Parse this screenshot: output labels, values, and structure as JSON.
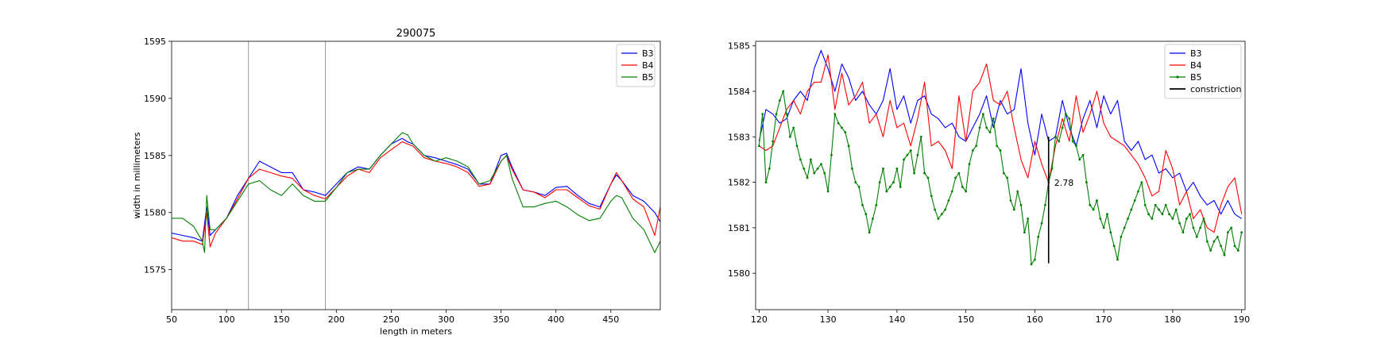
{
  "colors": {
    "B3": "#0000ff",
    "B4": "#ff0000",
    "B5": "#008000",
    "constriction": "#000000",
    "markers": "#808080"
  },
  "chart_data": [
    {
      "type": "line",
      "title": "290075",
      "xlabel": "length in meters",
      "ylabel": "width in millimeters",
      "xlim": [
        50,
        495
      ],
      "ylim": [
        1571.5,
        1595
      ],
      "xticks": [
        50,
        100,
        150,
        200,
        250,
        300,
        350,
        400,
        450
      ],
      "yticks": [
        1575,
        1580,
        1585,
        1590,
        1595
      ],
      "vlines": [
        120,
        190
      ],
      "legend": "top-right",
      "legend_entries": [
        "B3",
        "B4",
        "B5"
      ],
      "series": [
        {
          "name": "B3",
          "color": "#0000ff",
          "x": [
            50,
            60,
            70,
            78,
            82,
            85,
            90,
            100,
            110,
            120,
            130,
            140,
            150,
            160,
            170,
            180,
            190,
            200,
            210,
            220,
            230,
            240,
            250,
            260,
            265,
            270,
            280,
            290,
            300,
            310,
            320,
            330,
            340,
            350,
            355,
            360,
            370,
            380,
            390,
            400,
            410,
            420,
            430,
            440,
            450,
            455,
            460,
            470,
            480,
            490,
            495
          ],
          "y": [
            1578.2,
            1578.0,
            1577.8,
            1577.5,
            1580.5,
            1578.0,
            1578.5,
            1579.5,
            1581.5,
            1583.0,
            1584.5,
            1584.0,
            1583.5,
            1583.5,
            1582.0,
            1581.8,
            1581.5,
            1582.5,
            1583.5,
            1584.0,
            1583.8,
            1585.0,
            1586.0,
            1586.5,
            1586.2,
            1586.0,
            1585.0,
            1584.8,
            1584.5,
            1584.2,
            1583.8,
            1582.5,
            1582.5,
            1585.0,
            1585.2,
            1584.0,
            1582.0,
            1581.8,
            1581.5,
            1582.2,
            1582.3,
            1581.5,
            1580.8,
            1580.5,
            1582.5,
            1583.3,
            1582.8,
            1581.5,
            1581.0,
            1580.0,
            1579.2
          ]
        },
        {
          "name": "B4",
          "color": "#ff0000",
          "x": [
            50,
            60,
            70,
            78,
            82,
            85,
            90,
            100,
            110,
            120,
            130,
            140,
            150,
            160,
            170,
            180,
            190,
            200,
            210,
            220,
            230,
            240,
            250,
            260,
            265,
            270,
            280,
            290,
            300,
            310,
            320,
            330,
            340,
            350,
            355,
            360,
            370,
            380,
            390,
            400,
            410,
            420,
            430,
            440,
            450,
            455,
            460,
            470,
            480,
            490,
            495
          ],
          "y": [
            1577.8,
            1577.5,
            1577.5,
            1577.2,
            1580.0,
            1577.0,
            1578.2,
            1579.5,
            1581.2,
            1583.0,
            1583.8,
            1583.5,
            1583.2,
            1583.0,
            1582.0,
            1581.5,
            1581.2,
            1582.2,
            1583.2,
            1583.8,
            1583.5,
            1584.8,
            1585.5,
            1586.2,
            1586.0,
            1585.8,
            1584.8,
            1584.5,
            1584.3,
            1584.0,
            1583.5,
            1582.3,
            1582.5,
            1584.5,
            1585.0,
            1583.8,
            1582.0,
            1581.8,
            1581.3,
            1582.0,
            1582.0,
            1581.3,
            1580.6,
            1580.3,
            1582.5,
            1583.5,
            1582.8,
            1581.2,
            1580.5,
            1578.0,
            1580.5
          ]
        },
        {
          "name": "B5",
          "color": "#008000",
          "x": [
            50,
            60,
            70,
            78,
            80,
            82,
            85,
            90,
            100,
            110,
            120,
            130,
            140,
            150,
            160,
            170,
            180,
            190,
            200,
            210,
            220,
            230,
            240,
            250,
            260,
            265,
            270,
            280,
            290,
            300,
            310,
            320,
            330,
            340,
            350,
            355,
            360,
            370,
            380,
            390,
            400,
            410,
            420,
            430,
            440,
            450,
            455,
            460,
            470,
            480,
            490,
            495
          ],
          "y": [
            1579.5,
            1579.5,
            1578.8,
            1577.5,
            1576.5,
            1581.5,
            1578.5,
            1578.5,
            1579.5,
            1581.0,
            1582.5,
            1582.8,
            1582.0,
            1581.5,
            1582.5,
            1581.5,
            1581.0,
            1581.0,
            1582.2,
            1583.5,
            1583.8,
            1583.8,
            1585.0,
            1586.0,
            1587.0,
            1586.8,
            1586.0,
            1585.0,
            1584.5,
            1584.8,
            1584.5,
            1584.0,
            1582.5,
            1582.8,
            1584.5,
            1585.0,
            1583.0,
            1580.5,
            1580.5,
            1580.8,
            1581.0,
            1580.5,
            1579.8,
            1579.3,
            1579.5,
            1581.0,
            1581.5,
            1581.3,
            1579.5,
            1578.5,
            1576.5,
            1577.5
          ]
        }
      ]
    },
    {
      "type": "line",
      "xlim": [
        119.5,
        190.5
      ],
      "ylim": [
        1579.2,
        1585.1
      ],
      "xticks": [
        120,
        130,
        140,
        150,
        160,
        170,
        180,
        190
      ],
      "yticks": [
        1580,
        1581,
        1582,
        1583,
        1584,
        1585
      ],
      "legend": "top-right",
      "legend_entries": [
        "B3",
        "B4",
        "B5",
        "constriction"
      ],
      "annotation": {
        "x": 162,
        "y_top": 1583.0,
        "y_bottom": 1580.22,
        "label": "2.78"
      },
      "series": [
        {
          "name": "B3",
          "color": "#0000ff",
          "x": [
            120,
            121,
            122,
            123,
            124,
            125,
            126,
            127,
            128,
            129,
            130,
            131,
            132,
            133,
            134,
            135,
            136,
            137,
            138,
            139,
            140,
            141,
            142,
            143,
            144,
            145,
            146,
            147,
            148,
            149,
            150,
            151,
            152,
            153,
            154,
            155,
            156,
            157,
            158,
            159,
            160,
            161,
            162,
            163,
            164,
            165,
            166,
            167,
            168,
            169,
            170,
            171,
            172,
            173,
            174,
            175,
            176,
            177,
            178,
            179,
            180,
            181,
            182,
            183,
            184,
            185,
            186,
            187,
            188,
            189,
            190
          ],
          "y": [
            1582.9,
            1583.6,
            1583.5,
            1583.3,
            1583.4,
            1583.8,
            1584.0,
            1583.8,
            1584.5,
            1584.9,
            1584.5,
            1584.0,
            1584.6,
            1584.3,
            1583.8,
            1584.0,
            1583.7,
            1583.5,
            1583.8,
            1584.5,
            1583.6,
            1583.9,
            1583.3,
            1583.8,
            1583.9,
            1583.5,
            1583.4,
            1583.2,
            1583.3,
            1583.0,
            1582.9,
            1583.2,
            1583.5,
            1583.9,
            1583.2,
            1583.8,
            1583.5,
            1583.6,
            1584.5,
            1583.3,
            1582.6,
            1583.5,
            1582.9,
            1583.0,
            1583.8,
            1583.2,
            1582.8,
            1583.4,
            1583.8,
            1583.2,
            1583.9,
            1583.5,
            1583.8,
            1582.9,
            1582.7,
            1582.9,
            1582.5,
            1582.6,
            1582.2,
            1582.3,
            1582.1,
            1582.2,
            1581.8,
            1582.0,
            1581.7,
            1581.5,
            1581.6,
            1581.3,
            1581.6,
            1581.3,
            1581.2
          ]
        },
        {
          "name": "B4",
          "color": "#ff0000",
          "x": [
            120,
            121,
            122,
            123,
            124,
            125,
            126,
            127,
            128,
            129,
            130,
            131,
            132,
            133,
            134,
            135,
            136,
            137,
            138,
            139,
            140,
            141,
            142,
            143,
            144,
            145,
            146,
            147,
            148,
            149,
            150,
            151,
            152,
            153,
            154,
            155,
            156,
            157,
            158,
            159,
            160,
            161,
            162,
            163,
            164,
            165,
            166,
            167,
            168,
            169,
            170,
            171,
            172,
            173,
            174,
            175,
            176,
            177,
            178,
            179,
            180,
            181,
            182,
            183,
            184,
            185,
            186,
            187,
            188,
            189,
            190
          ],
          "y": [
            1582.8,
            1582.7,
            1582.8,
            1583.2,
            1583.6,
            1583.8,
            1583.5,
            1584.0,
            1584.2,
            1584.2,
            1584.8,
            1583.6,
            1584.4,
            1583.7,
            1583.9,
            1584.2,
            1583.3,
            1583.5,
            1583.0,
            1583.8,
            1583.2,
            1583.3,
            1582.8,
            1583.4,
            1584.2,
            1582.8,
            1582.9,
            1582.7,
            1582.3,
            1583.9,
            1582.9,
            1584.0,
            1584.2,
            1584.6,
            1583.8,
            1583.7,
            1584.0,
            1583.2,
            1582.5,
            1582.1,
            1582.9,
            1582.4,
            1582.0,
            1582.8,
            1583.4,
            1582.9,
            1583.9,
            1583.1,
            1583.5,
            1584.0,
            1583.3,
            1583.0,
            1582.9,
            1582.8,
            1582.6,
            1582.4,
            1582.1,
            1581.7,
            1581.8,
            1582.7,
            1582.3,
            1581.5,
            1581.8,
            1581.2,
            1581.4,
            1581.0,
            1580.9,
            1581.5,
            1581.9,
            1582.1,
            1581.3
          ]
        },
        {
          "name": "B5",
          "color": "#008000",
          "x": [
            120,
            120.5,
            121,
            121.5,
            122,
            122.5,
            123,
            123.5,
            124,
            124.5,
            125,
            125.5,
            126,
            126.5,
            127,
            127.5,
            128,
            128.5,
            129,
            129.5,
            130,
            130.5,
            131,
            131.5,
            132,
            132.5,
            133,
            133.5,
            134,
            134.5,
            135,
            135.5,
            136,
            136.5,
            137,
            137.5,
            138,
            138.5,
            139,
            139.5,
            140,
            140.5,
            141,
            141.5,
            142,
            142.5,
            143,
            143.5,
            144,
            144.5,
            145,
            145.5,
            146,
            146.5,
            147,
            147.5,
            148,
            148.5,
            149,
            149.5,
            150,
            150.5,
            151,
            151.5,
            152,
            152.5,
            153,
            153.5,
            154,
            154.5,
            155,
            155.5,
            156,
            156.5,
            157,
            157.5,
            158,
            158.5,
            159,
            159.5,
            160,
            160.5,
            161,
            161.5,
            162,
            162.5,
            163,
            163.5,
            164,
            164.5,
            165,
            165.5,
            166,
            166.5,
            167,
            167.5,
            168,
            168.5,
            169,
            169.5,
            170,
            170.5,
            171,
            171.5,
            172,
            172.5,
            173,
            173.5,
            174,
            174.5,
            175,
            175.5,
            176,
            176.5,
            177,
            177.5,
            178,
            178.5,
            179,
            179.5,
            180,
            180.5,
            181,
            181.5,
            182,
            182.5,
            183,
            183.5,
            184,
            184.5,
            185,
            185.5,
            186,
            186.5,
            187,
            187.5,
            188,
            188.5,
            189,
            189.5,
            190
          ],
          "y": [
            1582.8,
            1583.5,
            1582.0,
            1582.3,
            1582.9,
            1583.5,
            1583.8,
            1584.0,
            1583.5,
            1583.0,
            1583.2,
            1582.8,
            1582.5,
            1582.3,
            1582.1,
            1582.5,
            1582.2,
            1582.3,
            1582.4,
            1582.2,
            1581.8,
            1582.6,
            1583.5,
            1583.3,
            1583.2,
            1583.1,
            1582.8,
            1582.3,
            1582.0,
            1581.9,
            1581.5,
            1581.3,
            1580.9,
            1581.2,
            1581.5,
            1582.0,
            1582.3,
            1581.8,
            1581.9,
            1582.0,
            1582.3,
            1581.9,
            1582.5,
            1582.6,
            1582.7,
            1582.2,
            1582.6,
            1583.0,
            1582.2,
            1582.1,
            1581.7,
            1581.4,
            1581.2,
            1581.3,
            1581.4,
            1581.6,
            1581.8,
            1582.1,
            1582.2,
            1581.9,
            1581.8,
            1582.4,
            1582.7,
            1582.8,
            1583.2,
            1583.5,
            1583.2,
            1583.1,
            1583.4,
            1582.8,
            1582.7,
            1582.2,
            1582.1,
            1581.6,
            1581.4,
            1581.8,
            1581.5,
            1580.9,
            1581.2,
            1580.2,
            1580.3,
            1580.8,
            1581.1,
            1581.5,
            1582.0,
            1582.3,
            1583.0,
            1582.9,
            1583.2,
            1583.5,
            1583.4,
            1582.9,
            1582.8,
            1582.5,
            1582.6,
            1582.0,
            1581.5,
            1581.4,
            1581.6,
            1581.2,
            1581.0,
            1581.3,
            1580.9,
            1580.6,
            1580.3,
            1580.8,
            1581.0,
            1581.2,
            1581.4,
            1581.6,
            1581.8,
            1582.0,
            1581.5,
            1581.3,
            1581.2,
            1581.5,
            1581.4,
            1581.3,
            1581.5,
            1581.3,
            1581.2,
            1581.4,
            1581.1,
            1580.9,
            1581.2,
            1581.3,
            1581.0,
            1580.8,
            1581.0,
            1581.2,
            1580.7,
            1580.5,
            1580.7,
            1580.8,
            1580.6,
            1580.4,
            1580.9,
            1581.0,
            1580.6,
            1580.5,
            1580.9
          ]
        }
      ]
    }
  ]
}
